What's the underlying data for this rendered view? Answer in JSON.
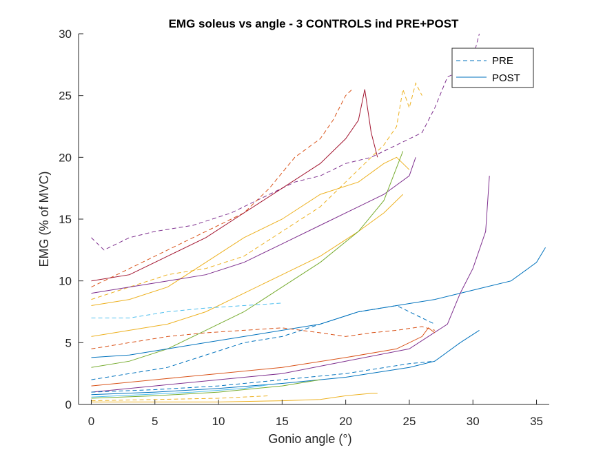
{
  "chart_data": {
    "type": "line",
    "title": "EMG soleus vs angle - 3 CONTROLS ind PRE+POST",
    "xlabel": "Gonio angle (°)",
    "ylabel": "EMG (% of MVC)",
    "xlim": [
      -1,
      36
    ],
    "ylim": [
      0,
      30
    ],
    "xticks": [
      0,
      5,
      10,
      15,
      20,
      25,
      30,
      35
    ],
    "yticks": [
      0,
      5,
      10,
      15,
      20,
      25,
      30
    ],
    "grid": false,
    "legend": {
      "placement": "top-right",
      "entries": [
        {
          "label": "PRE",
          "style": "dashed",
          "color": "#0072BD"
        },
        {
          "label": "POST",
          "style": "solid",
          "color": "#0072BD"
        }
      ]
    },
    "series": [
      {
        "style": "dashed",
        "color": "#7E2F8E",
        "x": [
          0,
          1,
          3,
          5,
          8,
          11,
          14,
          16,
          18,
          20,
          22,
          24,
          26,
          27,
          28,
          29,
          30,
          30.5
        ],
        "y": [
          13.5,
          12.5,
          13.5,
          14,
          14.5,
          15.5,
          17,
          18,
          18.5,
          19.5,
          20,
          21,
          22,
          24,
          26.5,
          27,
          28,
          30
        ]
      },
      {
        "style": "dashed",
        "color": "#D95319",
        "x": [
          0,
          2,
          5,
          8,
          10,
          12,
          14,
          16,
          18,
          19,
          20,
          20.5
        ],
        "y": [
          9.5,
          10.5,
          12,
          13.5,
          14.5,
          15.5,
          17.5,
          20,
          21.5,
          23,
          25,
          25.5
        ]
      },
      {
        "style": "dashed",
        "color": "#EDB120",
        "x": [
          0,
          3,
          6,
          9,
          12,
          15,
          18,
          20,
          22,
          23,
          24,
          24.5,
          25,
          25.5,
          26
        ],
        "y": [
          8.5,
          9.5,
          10.5,
          11,
          12,
          14,
          16,
          18,
          20,
          21,
          22.5,
          25.5,
          24,
          26,
          25
        ]
      },
      {
        "style": "solid",
        "color": "#A2142F",
        "x": [
          0,
          3,
          6,
          9,
          12,
          15,
          18,
          20,
          21,
          21.5,
          22,
          22.5
        ],
        "y": [
          10,
          10.5,
          12,
          13.5,
          15.5,
          17.5,
          19.5,
          21.5,
          23,
          25.5,
          22,
          20
        ]
      },
      {
        "style": "solid",
        "color": "#EDB120",
        "x": [
          0,
          3,
          6,
          9,
          12,
          15,
          18,
          21,
          23,
          24,
          25
        ],
        "y": [
          8,
          8.5,
          9.5,
          11.5,
          13.5,
          15,
          17,
          18,
          19.5,
          20,
          19
        ]
      },
      {
        "style": "solid",
        "color": "#7E2F8E",
        "x": [
          0,
          3,
          6,
          9,
          12,
          15,
          18,
          21,
          23,
          25,
          25.5
        ],
        "y": [
          9,
          9.5,
          10,
          10.5,
          11.5,
          13,
          14.5,
          16,
          17,
          18.5,
          20
        ]
      },
      {
        "style": "solid",
        "color": "#EDB120",
        "x": [
          0,
          3,
          6,
          9,
          12,
          15,
          18,
          21,
          23,
          24.5
        ],
        "y": [
          5.5,
          6,
          6.5,
          7.5,
          9,
          10.5,
          12,
          14,
          15.5,
          17
        ]
      },
      {
        "style": "solid",
        "color": "#77AC30",
        "x": [
          0,
          3,
          6,
          9,
          12,
          15,
          18,
          21,
          23,
          24.5
        ],
        "y": [
          3,
          3.5,
          4.5,
          6,
          7.5,
          9.5,
          11.5,
          14,
          16.5,
          20.5
        ]
      },
      {
        "style": "dashed",
        "color": "#0072BD",
        "x": [
          0,
          3,
          6,
          9,
          12,
          15,
          18,
          21,
          24,
          26,
          27
        ],
        "y": [
          2,
          2.5,
          3,
          4,
          5,
          5.5,
          6.5,
          7.5,
          8,
          7,
          6.5
        ]
      },
      {
        "style": "solid",
        "color": "#0072BD",
        "x": [
          0,
          3,
          6,
          9,
          12,
          15,
          18,
          21,
          24,
          27,
          29,
          31,
          33,
          35,
          35.7
        ],
        "y": [
          3.8,
          4,
          4.5,
          5,
          5.5,
          6,
          6.5,
          7.5,
          8,
          8.5,
          9,
          9.5,
          10,
          11.5,
          12.7
        ]
      },
      {
        "style": "solid",
        "color": "#7E2F8E",
        "x": [
          0,
          5,
          10,
          15,
          20,
          25,
          28,
          29,
          30,
          31,
          31.3
        ],
        "y": [
          1,
          1.5,
          2,
          2.5,
          3.5,
          4.5,
          6.5,
          9,
          11,
          14,
          18.5
        ]
      },
      {
        "style": "dashed",
        "color": "#4DBEEE",
        "x": [
          0,
          3,
          6,
          9,
          12,
          15
        ],
        "y": [
          7,
          7,
          7.5,
          7.8,
          8,
          8.2
        ]
      },
      {
        "style": "dashed",
        "color": "#D95319",
        "x": [
          0,
          3,
          6,
          9,
          12,
          15,
          18,
          20,
          22,
          24,
          26,
          27
        ],
        "y": [
          4.5,
          5,
          5.5,
          5.8,
          6,
          6.2,
          5.8,
          5.5,
          5.8,
          6,
          6.3,
          6
        ]
      },
      {
        "style": "solid",
        "color": "#D95319",
        "x": [
          0,
          5,
          10,
          15,
          20,
          24,
          26,
          26.5,
          27
        ],
        "y": [
          1.5,
          2,
          2.5,
          3,
          3.8,
          4.5,
          5.5,
          6.2,
          5.8
        ]
      },
      {
        "style": "solid",
        "color": "#0072BD",
        "x": [
          0,
          5,
          10,
          15,
          20,
          25,
          27,
          29,
          30.5
        ],
        "y": [
          0.8,
          1,
          1.3,
          1.7,
          2.2,
          3,
          3.5,
          5,
          6
        ]
      },
      {
        "style": "dashed",
        "color": "#0072BD",
        "x": [
          0,
          5,
          10,
          15,
          20,
          25,
          27
        ],
        "y": [
          1,
          1.2,
          1.5,
          2,
          2.5,
          3.3,
          3.5
        ]
      },
      {
        "style": "solid",
        "color": "#EDB120",
        "x": [
          0,
          5,
          10,
          15,
          18,
          20,
          22,
          22.5
        ],
        "y": [
          0.2,
          0.2,
          0.2,
          0.3,
          0.4,
          0.7,
          0.9,
          0.9
        ]
      },
      {
        "style": "solid",
        "color": "#77AC30",
        "x": [
          0,
          5,
          10,
          15,
          18
        ],
        "y": [
          0.5,
          0.7,
          1,
          1.5,
          2
        ]
      },
      {
        "style": "dashed",
        "color": "#EDB120",
        "x": [
          0,
          5,
          10,
          14
        ],
        "y": [
          0.3,
          0.4,
          0.5,
          0.7
        ]
      },
      {
        "style": "solid",
        "color": "#4DBEEE",
        "x": [
          0,
          4,
          8,
          12,
          14
        ],
        "y": [
          0.6,
          0.8,
          1,
          1.3,
          1.6
        ]
      }
    ]
  }
}
